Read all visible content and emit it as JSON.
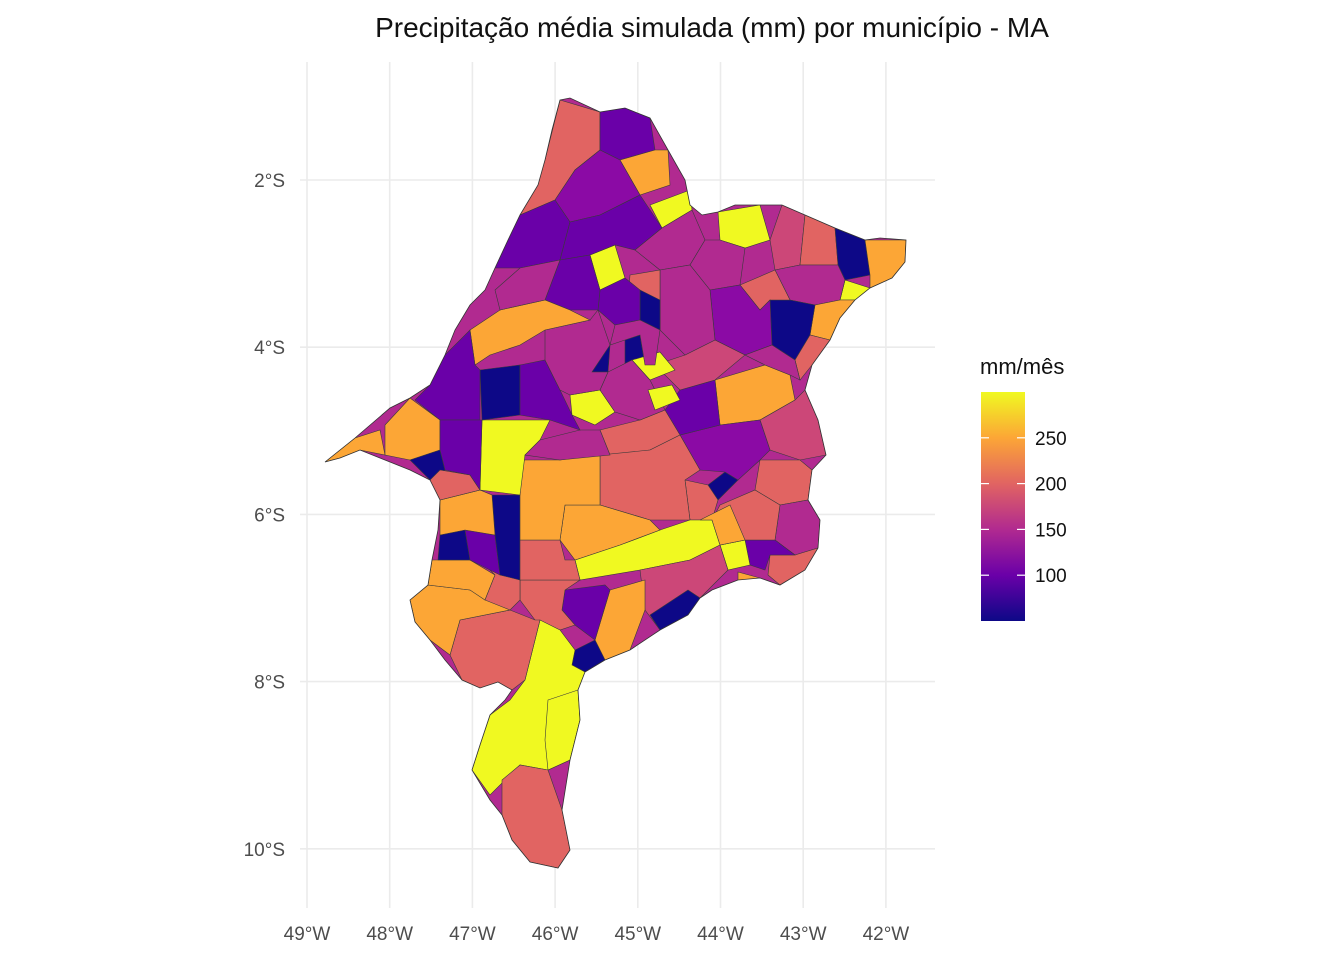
{
  "title": "Precipitação média simulada (mm) por município - MA",
  "map": {
    "region": "MA",
    "x_ticks": [
      "49°W",
      "48°W",
      "47°W",
      "46°W",
      "45°W",
      "44°W",
      "43°W",
      "42°W"
    ],
    "x_tick_values": [
      -49,
      -48,
      -47,
      -46,
      -45,
      -44,
      -43,
      -42
    ],
    "y_ticks": [
      "2°S",
      "4°S",
      "6°S",
      "8°S",
      "10°S"
    ],
    "y_tick_values": [
      -2,
      -4,
      -6,
      -8,
      -10
    ],
    "xlim": [
      -49.3,
      -41.5
    ],
    "ylim": [
      -10.7,
      -0.7
    ],
    "grid": true
  },
  "legend": {
    "title": "mm/mês",
    "labels": [
      "250",
      "200",
      "150",
      "100"
    ],
    "label_values": [
      250,
      200,
      150,
      100
    ],
    "range": [
      50,
      300
    ],
    "palette": [
      "#0d0887",
      "#6a00a8",
      "#b12a90",
      "#e16462",
      "#fca636",
      "#f0f921"
    ],
    "placement": "right"
  }
}
